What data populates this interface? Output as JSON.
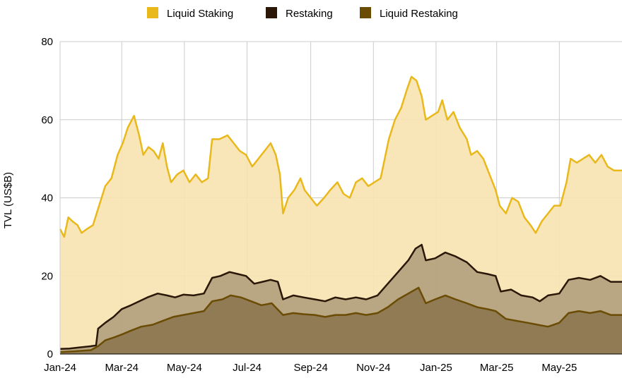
{
  "chart_data": {
    "type": "area",
    "ylabel": "TVL (US$B)",
    "xlabel": "",
    "ylim": [
      0,
      80
    ],
    "yticks": [
      0,
      20,
      40,
      60,
      80
    ],
    "x_ticks": [
      "Jan-24",
      "Mar-24",
      "May-24",
      "Jul-24",
      "Sep-24",
      "Nov-24",
      "Jan-25",
      "Mar-25",
      "May-25"
    ],
    "x_tick_dates": [
      "2024-01-01",
      "2024-03-01",
      "2024-05-01",
      "2024-07-01",
      "2024-09-01",
      "2024-11-01",
      "2025-01-01",
      "2025-03-01",
      "2025-05-01"
    ],
    "x_range": [
      "2024-01-01",
      "2025-07-01"
    ],
    "grid": true,
    "legend_position": "top",
    "series": [
      {
        "name": "Liquid Staking",
        "color": "#e9b81a",
        "fill": "#f8e3b0",
        "points": [
          [
            "2024-01-01",
            32
          ],
          [
            "2024-01-05",
            30
          ],
          [
            "2024-01-09",
            35
          ],
          [
            "2024-01-13",
            34
          ],
          [
            "2024-01-18",
            33
          ],
          [
            "2024-01-22",
            31
          ],
          [
            "2024-01-27",
            32
          ],
          [
            "2024-02-02",
            33
          ],
          [
            "2024-02-08",
            38
          ],
          [
            "2024-02-14",
            43
          ],
          [
            "2024-02-20",
            45
          ],
          [
            "2024-02-26",
            51
          ],
          [
            "2024-03-02",
            54
          ],
          [
            "2024-03-07",
            58
          ],
          [
            "2024-03-13",
            61
          ],
          [
            "2024-03-18",
            56
          ],
          [
            "2024-03-22",
            51
          ],
          [
            "2024-03-27",
            53
          ],
          [
            "2024-04-01",
            52
          ],
          [
            "2024-04-06",
            50
          ],
          [
            "2024-04-10",
            54
          ],
          [
            "2024-04-14",
            48
          ],
          [
            "2024-04-18",
            44
          ],
          [
            "2024-04-24",
            46
          ],
          [
            "2024-04-30",
            47
          ],
          [
            "2024-05-06",
            44
          ],
          [
            "2024-05-12",
            46
          ],
          [
            "2024-05-18",
            44
          ],
          [
            "2024-05-24",
            45
          ],
          [
            "2024-05-28",
            55
          ],
          [
            "2024-06-04",
            55
          ],
          [
            "2024-06-12",
            56
          ],
          [
            "2024-06-18",
            54
          ],
          [
            "2024-06-24",
            52
          ],
          [
            "2024-06-30",
            51
          ],
          [
            "2024-07-06",
            48
          ],
          [
            "2024-07-12",
            50
          ],
          [
            "2024-07-18",
            52
          ],
          [
            "2024-07-24",
            54
          ],
          [
            "2024-07-29",
            51
          ],
          [
            "2024-08-02",
            46
          ],
          [
            "2024-08-05",
            36
          ],
          [
            "2024-08-10",
            40
          ],
          [
            "2024-08-16",
            42
          ],
          [
            "2024-08-22",
            45
          ],
          [
            "2024-08-26",
            42
          ],
          [
            "2024-09-01",
            40
          ],
          [
            "2024-09-07",
            38
          ],
          [
            "2024-09-14",
            40
          ],
          [
            "2024-09-20",
            42
          ],
          [
            "2024-09-27",
            44
          ],
          [
            "2024-10-03",
            41
          ],
          [
            "2024-10-09",
            40
          ],
          [
            "2024-10-15",
            44
          ],
          [
            "2024-10-21",
            45
          ],
          [
            "2024-10-27",
            43
          ],
          [
            "2024-11-02",
            44
          ],
          [
            "2024-11-08",
            45
          ],
          [
            "2024-11-12",
            50
          ],
          [
            "2024-11-16",
            55
          ],
          [
            "2024-11-22",
            60
          ],
          [
            "2024-11-28",
            63
          ],
          [
            "2024-12-04",
            68
          ],
          [
            "2024-12-08",
            71
          ],
          [
            "2024-12-13",
            70
          ],
          [
            "2024-12-18",
            66
          ],
          [
            "2024-12-22",
            60
          ],
          [
            "2024-12-28",
            61
          ],
          [
            "2025-01-03",
            62
          ],
          [
            "2025-01-07",
            65
          ],
          [
            "2025-01-12",
            60
          ],
          [
            "2025-01-18",
            62
          ],
          [
            "2025-01-24",
            58
          ],
          [
            "2025-01-31",
            55
          ],
          [
            "2025-02-04",
            51
          ],
          [
            "2025-02-10",
            52
          ],
          [
            "2025-02-16",
            50
          ],
          [
            "2025-02-22",
            46
          ],
          [
            "2025-02-28",
            42
          ],
          [
            "2025-03-04",
            38
          ],
          [
            "2025-03-10",
            36
          ],
          [
            "2025-03-16",
            40
          ],
          [
            "2025-03-22",
            39
          ],
          [
            "2025-03-28",
            35
          ],
          [
            "2025-04-03",
            33
          ],
          [
            "2025-04-08",
            31
          ],
          [
            "2025-04-14",
            34
          ],
          [
            "2025-04-20",
            36
          ],
          [
            "2025-04-26",
            38
          ],
          [
            "2025-05-02",
            38
          ],
          [
            "2025-05-08",
            44
          ],
          [
            "2025-05-12",
            50
          ],
          [
            "2025-05-18",
            49
          ],
          [
            "2025-05-24",
            50
          ],
          [
            "2025-05-30",
            51
          ],
          [
            "2025-06-05",
            49
          ],
          [
            "2025-06-11",
            51
          ],
          [
            "2025-06-17",
            48
          ],
          [
            "2025-06-23",
            47
          ],
          [
            "2025-07-01",
            47
          ]
        ]
      },
      {
        "name": "Restaking",
        "color": "#2a1708",
        "fill": "#b19f7c",
        "points": [
          [
            "2024-01-01",
            1.3
          ],
          [
            "2024-01-10",
            1.4
          ],
          [
            "2024-01-20",
            1.7
          ],
          [
            "2024-01-31",
            2.0
          ],
          [
            "2024-02-05",
            2.2
          ],
          [
            "2024-02-07",
            6.5
          ],
          [
            "2024-02-14",
            8.0
          ],
          [
            "2024-02-22",
            9.5
          ],
          [
            "2024-03-01",
            11.5
          ],
          [
            "2024-03-10",
            12.5
          ],
          [
            "2024-03-18",
            13.5
          ],
          [
            "2024-03-26",
            14.5
          ],
          [
            "2024-04-05",
            15.5
          ],
          [
            "2024-04-14",
            15.0
          ],
          [
            "2024-04-22",
            14.5
          ],
          [
            "2024-04-30",
            15.2
          ],
          [
            "2024-05-10",
            15.0
          ],
          [
            "2024-05-20",
            15.5
          ],
          [
            "2024-05-28",
            19.5
          ],
          [
            "2024-06-05",
            20.0
          ],
          [
            "2024-06-14",
            21.0
          ],
          [
            "2024-06-22",
            20.5
          ],
          [
            "2024-06-30",
            20.0
          ],
          [
            "2024-07-08",
            18.0
          ],
          [
            "2024-07-16",
            18.5
          ],
          [
            "2024-07-24",
            19.0
          ],
          [
            "2024-07-31",
            18.5
          ],
          [
            "2024-08-05",
            14.0
          ],
          [
            "2024-08-15",
            15.0
          ],
          [
            "2024-08-25",
            14.5
          ],
          [
            "2024-09-05",
            14.0
          ],
          [
            "2024-09-15",
            13.5
          ],
          [
            "2024-09-25",
            14.5
          ],
          [
            "2024-10-05",
            14.0
          ],
          [
            "2024-10-15",
            14.5
          ],
          [
            "2024-10-25",
            14.0
          ],
          [
            "2024-11-05",
            15.0
          ],
          [
            "2024-11-15",
            18.0
          ],
          [
            "2024-11-25",
            21.0
          ],
          [
            "2024-12-05",
            24.0
          ],
          [
            "2024-12-12",
            27.0
          ],
          [
            "2024-12-18",
            28.0
          ],
          [
            "2024-12-22",
            24.0
          ],
          [
            "2024-12-31",
            24.5
          ],
          [
            "2025-01-10",
            26.0
          ],
          [
            "2025-01-20",
            25.0
          ],
          [
            "2025-01-31",
            23.5
          ],
          [
            "2025-02-10",
            21.0
          ],
          [
            "2025-02-20",
            20.5
          ],
          [
            "2025-02-28",
            20.0
          ],
          [
            "2025-03-05",
            16.0
          ],
          [
            "2025-03-15",
            16.5
          ],
          [
            "2025-03-25",
            15.0
          ],
          [
            "2025-04-05",
            14.5
          ],
          [
            "2025-04-12",
            13.5
          ],
          [
            "2025-04-20",
            15.0
          ],
          [
            "2025-05-01",
            15.5
          ],
          [
            "2025-05-10",
            19.0
          ],
          [
            "2025-05-20",
            19.5
          ],
          [
            "2025-05-31",
            19.0
          ],
          [
            "2025-06-10",
            20.0
          ],
          [
            "2025-06-20",
            18.5
          ],
          [
            "2025-07-01",
            18.5
          ]
        ]
      },
      {
        "name": "Liquid Restaking",
        "color": "#6b4c05",
        "fill": "#8d7750",
        "points": [
          [
            "2024-01-01",
            0.5
          ],
          [
            "2024-01-15",
            0.7
          ],
          [
            "2024-01-31",
            1.0
          ],
          [
            "2024-02-07",
            2.0
          ],
          [
            "2024-02-14",
            3.5
          ],
          [
            "2024-02-22",
            4.2
          ],
          [
            "2024-03-01",
            5.0
          ],
          [
            "2024-03-10",
            6.0
          ],
          [
            "2024-03-20",
            7.0
          ],
          [
            "2024-03-31",
            7.5
          ],
          [
            "2024-04-10",
            8.5
          ],
          [
            "2024-04-20",
            9.5
          ],
          [
            "2024-04-30",
            10.0
          ],
          [
            "2024-05-10",
            10.5
          ],
          [
            "2024-05-20",
            11.0
          ],
          [
            "2024-05-28",
            13.5
          ],
          [
            "2024-06-07",
            14.0
          ],
          [
            "2024-06-15",
            15.0
          ],
          [
            "2024-06-25",
            14.5
          ],
          [
            "2024-07-05",
            13.5
          ],
          [
            "2024-07-15",
            12.5
          ],
          [
            "2024-07-25",
            13.0
          ],
          [
            "2024-08-05",
            10.0
          ],
          [
            "2024-08-15",
            10.5
          ],
          [
            "2024-08-25",
            10.2
          ],
          [
            "2024-09-05",
            10.0
          ],
          [
            "2024-09-15",
            9.5
          ],
          [
            "2024-09-25",
            10.0
          ],
          [
            "2024-10-05",
            10.0
          ],
          [
            "2024-10-15",
            10.5
          ],
          [
            "2024-10-25",
            10.0
          ],
          [
            "2024-11-05",
            10.5
          ],
          [
            "2024-11-15",
            12.0
          ],
          [
            "2024-11-25",
            14.0
          ],
          [
            "2024-12-05",
            15.5
          ],
          [
            "2024-12-15",
            17.0
          ],
          [
            "2024-12-22",
            13.0
          ],
          [
            "2024-12-31",
            14.0
          ],
          [
            "2025-01-10",
            15.0
          ],
          [
            "2025-01-20",
            14.0
          ],
          [
            "2025-01-31",
            13.0
          ],
          [
            "2025-02-10",
            12.0
          ],
          [
            "2025-02-20",
            11.5
          ],
          [
            "2025-02-28",
            11.0
          ],
          [
            "2025-03-10",
            9.0
          ],
          [
            "2025-03-20",
            8.5
          ],
          [
            "2025-03-31",
            8.0
          ],
          [
            "2025-04-10",
            7.5
          ],
          [
            "2025-04-20",
            7.0
          ],
          [
            "2025-05-01",
            8.0
          ],
          [
            "2025-05-10",
            10.5
          ],
          [
            "2025-05-20",
            11.0
          ],
          [
            "2025-05-31",
            10.5
          ],
          [
            "2025-06-10",
            11.0
          ],
          [
            "2025-06-20",
            10.0
          ],
          [
            "2025-07-01",
            10.0
          ]
        ]
      }
    ]
  }
}
